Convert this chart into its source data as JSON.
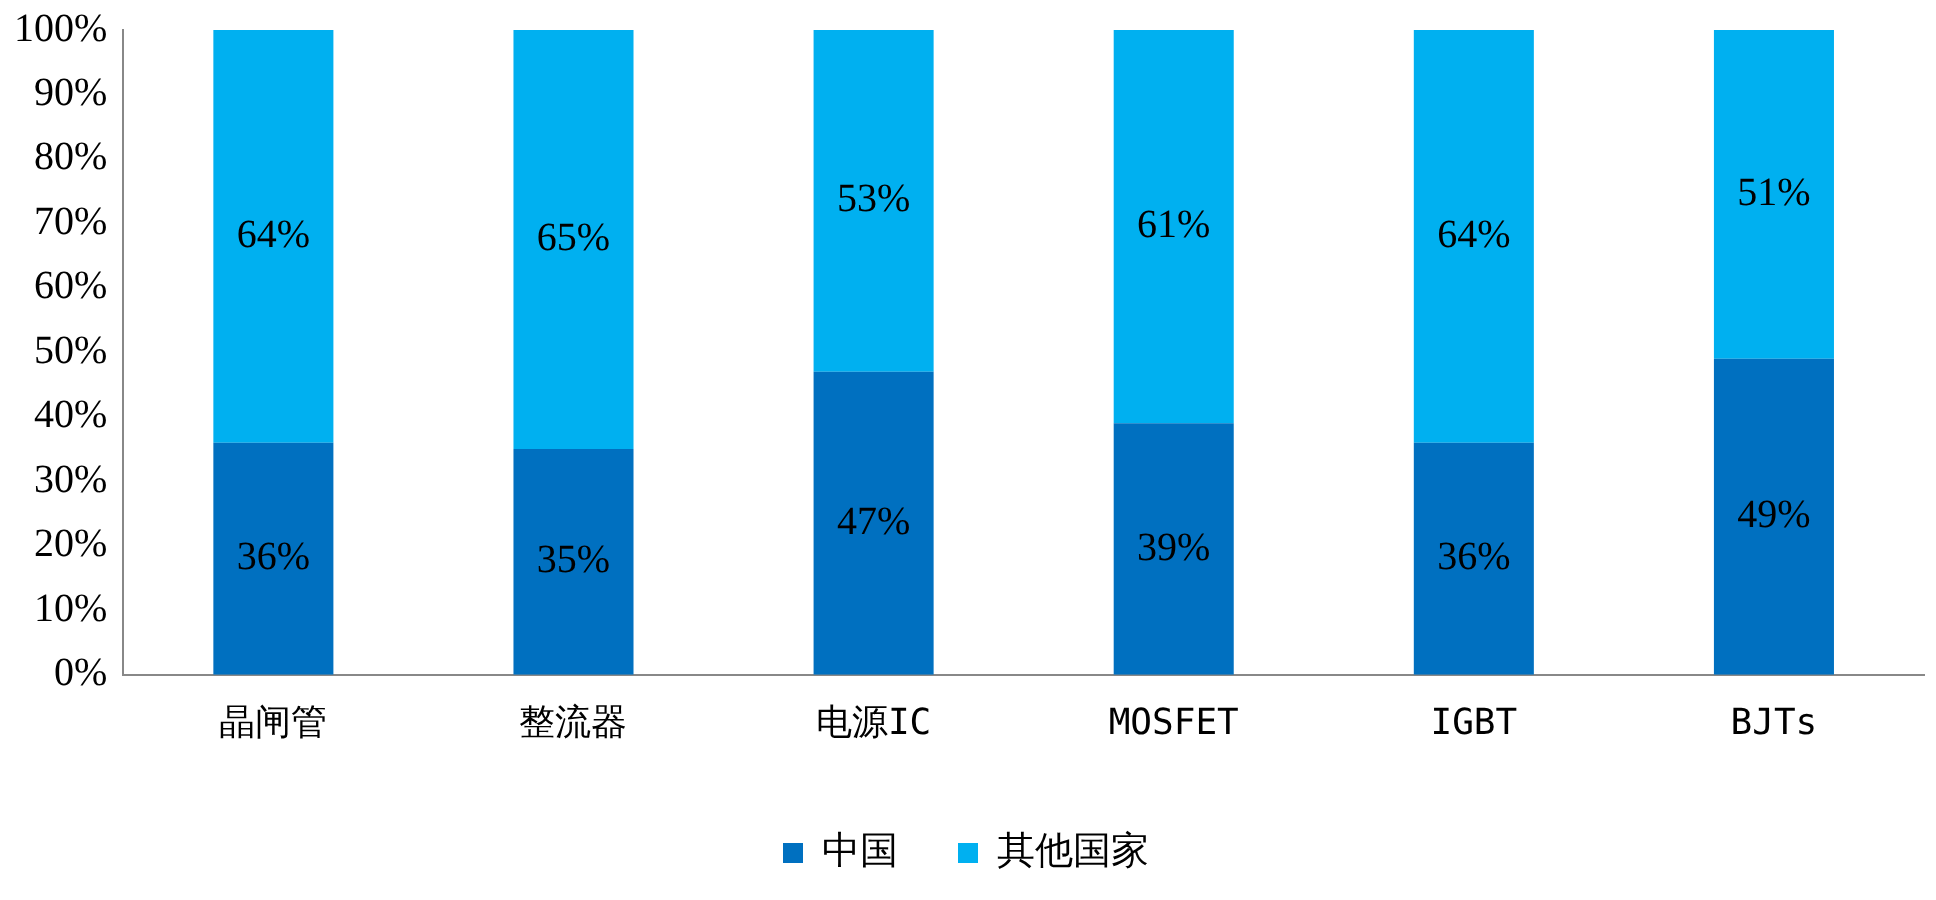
{
  "chart_data": {
    "type": "bar",
    "stacked": true,
    "categories": [
      "晶闸管",
      "整流器",
      "电源IC",
      "MOSFET",
      "IGBT",
      "BJTs"
    ],
    "series": [
      {
        "name": "中国",
        "color": "#0070c0",
        "values": [
          36,
          35,
          47,
          39,
          36,
          49
        ],
        "value_labels": [
          "36%",
          "35%",
          "47%",
          "39%",
          "36%",
          "49%"
        ]
      },
      {
        "name": "其他国家",
        "color": "#00b0f0",
        "values": [
          64,
          65,
          53,
          61,
          64,
          51
        ],
        "value_labels": [
          "64%",
          "65%",
          "53%",
          "61%",
          "64%",
          "51%"
        ]
      }
    ],
    "ylim": [
      0,
      100
    ],
    "yticks": [
      {
        "value": 0,
        "label": "0%"
      },
      {
        "value": 10,
        "label": "10%"
      },
      {
        "value": 20,
        "label": "20%"
      },
      {
        "value": 30,
        "label": "30%"
      },
      {
        "value": 40,
        "label": "40%"
      },
      {
        "value": 50,
        "label": "50%"
      },
      {
        "value": 60,
        "label": "60%"
      },
      {
        "value": 70,
        "label": "70%"
      },
      {
        "value": 80,
        "label": "80%"
      },
      {
        "value": 90,
        "label": "90%"
      },
      {
        "value": 100,
        "label": "100%"
      }
    ],
    "grid": false,
    "legend": "bottom"
  }
}
